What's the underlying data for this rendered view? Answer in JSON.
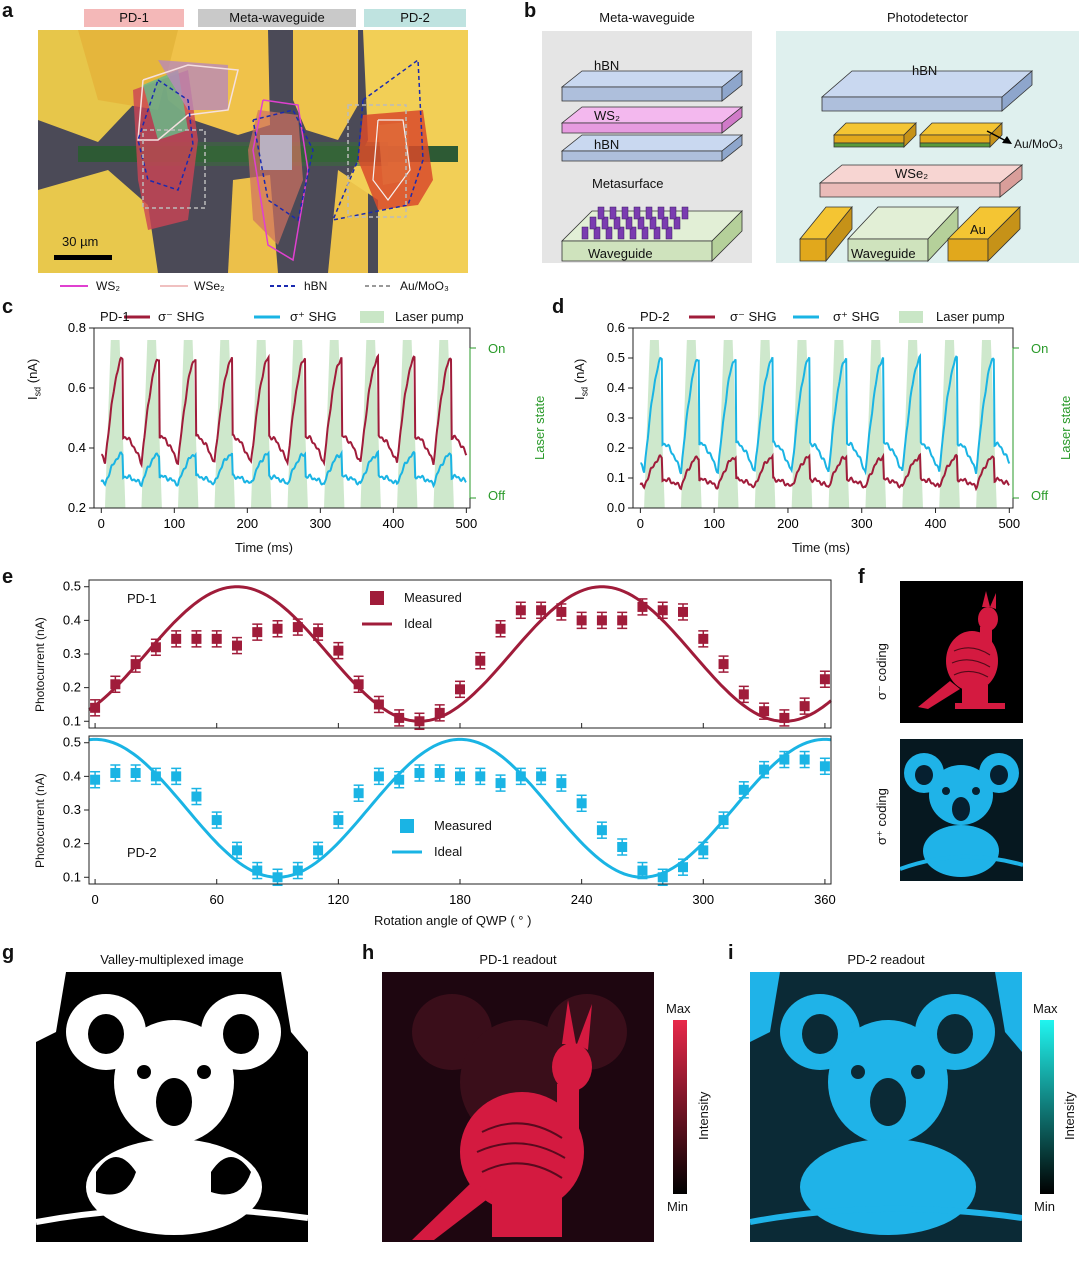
{
  "panels": {
    "a": {
      "label": "a",
      "tags": [
        "PD-1",
        "Meta-waveguide",
        "PD-2"
      ],
      "tag_colors": [
        "#f4b8b8",
        "#c9c9c9",
        "#bfe3e0"
      ],
      "scalebar": "30 µm",
      "legend": [
        {
          "text": "WS₂",
          "color": "#e040d0",
          "dash": false
        },
        {
          "text": "WSe₂",
          "color": "#f0c0c0",
          "dash": false
        },
        {
          "text": "hBN",
          "color": "#1a2ab0",
          "dash": true
        },
        {
          "text": "Au/MoO₃",
          "color": "#999999",
          "dash": true
        }
      ]
    },
    "b": {
      "label": "b",
      "left_title": "Meta-waveguide",
      "right_title": "Photodetector",
      "left_layers": [
        "hBN",
        "WS₂",
        "hBN",
        "Metasurface",
        "Waveguide"
      ],
      "right_layers": [
        "hBN",
        "Au/MoO₃",
        "WSe₂",
        "Waveguide",
        "Au"
      ]
    },
    "c": {
      "label": "c",
      "pd": "PD-1",
      "legend": [
        "σ⁻ SHG",
        "σ⁺ SHG",
        "Laser pump"
      ],
      "ylabel": "Isd (nA)",
      "ylabel_main": "I",
      "ylabel_sub": "sd",
      "ylabel_unit": " (nA)",
      "xlabel": "Time (ms)",
      "right_label": "Laser state",
      "on": "On",
      "off": "Off",
      "xticks": [
        "0",
        "100",
        "200",
        "300",
        "400",
        "500"
      ],
      "yticks": [
        "0.2",
        "0.4",
        "0.6",
        "0.8"
      ]
    },
    "d": {
      "label": "d",
      "pd": "PD-2",
      "legend": [
        "σ⁻ SHG",
        "σ⁺ SHG",
        "Laser pump"
      ],
      "ylabel": "Isd (nA)",
      "ylabel_main": "I",
      "ylabel_sub": "sd",
      "ylabel_unit": " (nA)",
      "xlabel": "Time (ms)",
      "right_label": "Laser state",
      "on": "On",
      "off": "Off",
      "xticks": [
        "0",
        "100",
        "200",
        "300",
        "400",
        "500"
      ],
      "yticks": [
        "0.0",
        "0.1",
        "0.2",
        "0.3",
        "0.4",
        "0.5",
        "0.6"
      ]
    },
    "e": {
      "label": "e",
      "top_pd": "PD-1",
      "bottom_pd": "PD-2",
      "legend_measured": "Measured",
      "legend_ideal": "Ideal",
      "ylabel": "Photocurrent (nA)",
      "xlabel": "Rotation angle of QWP ( ° )",
      "xticks": [
        "0",
        "60",
        "120",
        "180",
        "240",
        "300",
        "360"
      ],
      "yticks": [
        "0.1",
        "0.2",
        "0.3",
        "0.4",
        "0.5"
      ]
    },
    "f": {
      "label": "f",
      "top_label": "σ⁻ coding",
      "bottom_label": "σ⁺ coding"
    },
    "g": {
      "label": "g",
      "title": "Valley-multiplexed image"
    },
    "h": {
      "label": "h",
      "title": "PD-1 readout",
      "cb_max": "Max",
      "cb_min": "Min",
      "cb_label": "Intensity"
    },
    "i": {
      "label": "i",
      "title": "PD-2 readout",
      "cb_max": "Max",
      "cb_min": "Min",
      "cb_label": "Intensity"
    }
  },
  "colors": {
    "sigma_minus": "#a01c3a",
    "sigma_plus": "#1ab4e4",
    "laser": "#c9e6c6",
    "laser_axis": "#2a9a2a"
  },
  "chart_data": [
    {
      "id": "c",
      "type": "line",
      "title": "PD-1",
      "xlabel": "Time (ms)",
      "ylabel": "Isd (nA)",
      "xlim": [
        -10,
        505
      ],
      "ylim": [
        0.2,
        0.8
      ],
      "series": [
        {
          "name": "σ⁻ SHG",
          "period_ms": 50,
          "min": 0.35,
          "max": 0.7
        },
        {
          "name": "σ⁺ SHG",
          "period_ms": 50,
          "min": 0.28,
          "max": 0.38
        },
        {
          "name": "Laser pump",
          "period_ms": 50,
          "states": [
            "Off",
            "On"
          ]
        }
      ]
    },
    {
      "id": "d",
      "type": "line",
      "title": "PD-2",
      "xlabel": "Time (ms)",
      "ylabel": "Isd (nA)",
      "xlim": [
        -10,
        505
      ],
      "ylim": [
        0.0,
        0.6
      ],
      "series": [
        {
          "name": "σ⁻ SHG",
          "period_ms": 50,
          "min": 0.07,
          "max": 0.17
        },
        {
          "name": "σ⁺ SHG",
          "period_ms": 50,
          "min": 0.12,
          "max": 0.5
        },
        {
          "name": "Laser pump",
          "period_ms": 50,
          "states": [
            "Off",
            "On"
          ]
        }
      ]
    },
    {
      "id": "e-top",
      "type": "scatter",
      "title": "PD-1",
      "xlabel": "Rotation angle of QWP ( ° )",
      "ylabel": "Photocurrent (nA)",
      "xlim": [
        -3,
        363
      ],
      "ylim": [
        0.08,
        0.52
      ],
      "x": [
        0,
        10,
        20,
        30,
        40,
        50,
        60,
        70,
        80,
        90,
        100,
        110,
        120,
        130,
        140,
        150,
        160,
        170,
        180,
        190,
        200,
        210,
        220,
        230,
        240,
        250,
        260,
        270,
        280,
        290,
        300,
        310,
        320,
        330,
        340,
        350,
        360
      ],
      "series": [
        {
          "name": "Measured",
          "values": [
            0.14,
            0.21,
            0.27,
            0.32,
            0.345,
            0.345,
            0.345,
            0.325,
            0.365,
            0.375,
            0.38,
            0.365,
            0.31,
            0.21,
            0.15,
            0.11,
            0.1,
            0.125,
            0.195,
            0.28,
            0.375,
            0.43,
            0.43,
            0.425,
            0.4,
            0.4,
            0.4,
            0.44,
            0.43,
            0.425,
            0.345,
            0.27,
            0.18,
            0.13,
            0.11,
            0.145,
            0.225
          ]
        },
        {
          "name": "Ideal",
          "min": 0.1,
          "max": 0.5,
          "peak_deg": [
            70,
            250
          ]
        }
      ]
    },
    {
      "id": "e-bottom",
      "type": "scatter",
      "title": "PD-2",
      "xlabel": "Rotation angle of QWP ( ° )",
      "ylabel": "Photocurrent (nA)",
      "xlim": [
        -3,
        363
      ],
      "ylim": [
        0.08,
        0.52
      ],
      "x": [
        0,
        10,
        20,
        30,
        40,
        50,
        60,
        70,
        80,
        90,
        100,
        110,
        120,
        130,
        140,
        150,
        160,
        170,
        180,
        190,
        200,
        210,
        220,
        230,
        240,
        250,
        260,
        270,
        280,
        290,
        300,
        310,
        320,
        330,
        340,
        350,
        360
      ],
      "series": [
        {
          "name": "Measured",
          "values": [
            0.39,
            0.41,
            0.41,
            0.4,
            0.4,
            0.34,
            0.27,
            0.18,
            0.12,
            0.1,
            0.12,
            0.18,
            0.27,
            0.35,
            0.4,
            0.39,
            0.41,
            0.41,
            0.4,
            0.4,
            0.38,
            0.4,
            0.4,
            0.38,
            0.32,
            0.24,
            0.19,
            0.12,
            0.1,
            0.13,
            0.18,
            0.27,
            0.36,
            0.42,
            0.45,
            0.45,
            0.43
          ]
        },
        {
          "name": "Ideal",
          "min": 0.1,
          "max": 0.51,
          "peak_deg": [
            0,
            180,
            360
          ]
        }
      ]
    }
  ]
}
